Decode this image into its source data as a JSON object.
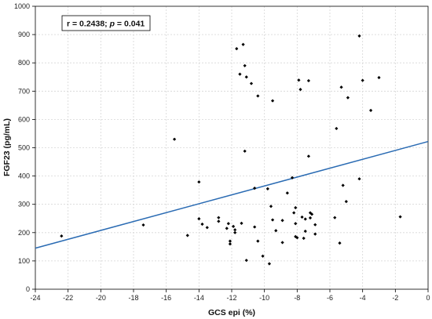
{
  "chart_data": {
    "type": "scatter",
    "title": "",
    "xlabel": "GCS epi (%)",
    "ylabel": "FGF23 (pg/mL)",
    "xlim": [
      -24,
      0
    ],
    "ylim": [
      0,
      1000
    ],
    "x_ticks": [
      -24,
      -22,
      -20,
      -18,
      -16,
      -14,
      -12,
      -10,
      -8,
      -6,
      -4,
      -2,
      0
    ],
    "y_ticks": [
      0,
      100,
      200,
      300,
      400,
      500,
      600,
      700,
      800,
      900,
      1000
    ],
    "grid": true,
    "annotation": {
      "r_label": "r",
      "r_value": " = 0.2438; ",
      "p_label": "p",
      "p_value": " = 0.041"
    },
    "marker_color": "#000000",
    "line_color": "#2a6bb3",
    "regression_line": {
      "x": [
        -24,
        0
      ],
      "y": [
        145,
        522
      ]
    },
    "series": [
      {
        "points": [
          [
            -22.4,
            188
          ],
          [
            -17.4,
            227
          ],
          [
            -15.5,
            530
          ],
          [
            -14.7,
            190
          ],
          [
            -14.0,
            379
          ],
          [
            -14.0,
            249
          ],
          [
            -13.8,
            230
          ],
          [
            -13.5,
            218
          ],
          [
            -12.8,
            253
          ],
          [
            -12.8,
            240
          ],
          [
            -12.3,
            215
          ],
          [
            -12.2,
            232
          ],
          [
            -12.1,
            170
          ],
          [
            -12.1,
            160
          ],
          [
            -11.9,
            222
          ],
          [
            -11.8,
            210
          ],
          [
            -11.8,
            200
          ],
          [
            -11.7,
            850
          ],
          [
            -11.5,
            760
          ],
          [
            -11.4,
            233
          ],
          [
            -11.3,
            865
          ],
          [
            -11.2,
            790
          ],
          [
            -11.2,
            488
          ],
          [
            -11.1,
            750
          ],
          [
            -11.1,
            102
          ],
          [
            -10.8,
            727
          ],
          [
            -10.6,
            357
          ],
          [
            -10.6,
            220
          ],
          [
            -10.4,
            683
          ],
          [
            -10.4,
            170
          ],
          [
            -10.1,
            117
          ],
          [
            -9.8,
            355
          ],
          [
            -9.7,
            90
          ],
          [
            -9.6,
            293
          ],
          [
            -9.5,
            666
          ],
          [
            -9.5,
            245
          ],
          [
            -9.3,
            207
          ],
          [
            -8.9,
            243
          ],
          [
            -8.9,
            165
          ],
          [
            -8.6,
            340
          ],
          [
            -8.3,
            394
          ],
          [
            -8.2,
            270
          ],
          [
            -8.1,
            288
          ],
          [
            -8.1,
            232
          ],
          [
            -8.1,
            186
          ],
          [
            -8.0,
            182
          ],
          [
            -7.9,
            739
          ],
          [
            -7.8,
            706
          ],
          [
            -7.7,
            255
          ],
          [
            -7.6,
            180
          ],
          [
            -7.5,
            248
          ],
          [
            -7.5,
            205
          ],
          [
            -7.3,
            737
          ],
          [
            -7.3,
            470
          ],
          [
            -7.2,
            270
          ],
          [
            -7.2,
            252
          ],
          [
            -7.1,
            265
          ],
          [
            -6.9,
            228
          ],
          [
            -6.9,
            195
          ],
          [
            -5.7,
            253
          ],
          [
            -5.6,
            568
          ],
          [
            -5.4,
            163
          ],
          [
            -5.3,
            714
          ],
          [
            -5.2,
            367
          ],
          [
            -5.0,
            310
          ],
          [
            -4.9,
            677
          ],
          [
            -4.2,
            895
          ],
          [
            -4.2,
            390
          ],
          [
            -4.0,
            738
          ],
          [
            -3.5,
            632
          ],
          [
            -3.0,
            748
          ],
          [
            -1.7,
            256
          ]
        ]
      }
    ]
  }
}
